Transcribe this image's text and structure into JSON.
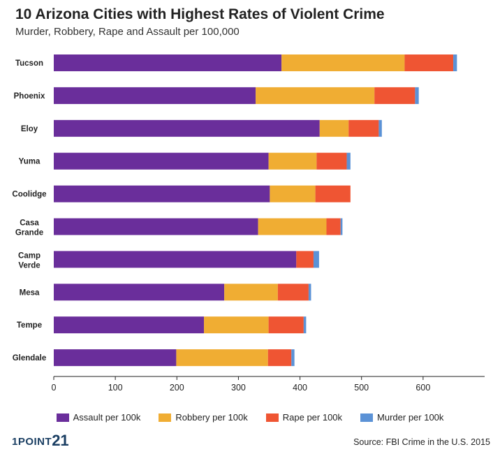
{
  "chart_data": {
    "type": "bar",
    "orientation": "horizontal",
    "stacked": true,
    "title": "10 Arizona Cities with Highest Rates of Violent Crime",
    "subtitle": "Murder, Robbery, Rape and Assault per 100,000",
    "categories": [
      {
        "line1": "Tucson",
        "line2": ""
      },
      {
        "line1": "Phoenix",
        "line2": ""
      },
      {
        "line1": "Eloy",
        "line2": ""
      },
      {
        "line1": "Yuma",
        "line2": ""
      },
      {
        "line1": "Coolidge",
        "line2": ""
      },
      {
        "line1": "Casa",
        "line2": "Grande"
      },
      {
        "line1": "Camp",
        "line2": "Verde"
      },
      {
        "line1": "Mesa",
        "line2": ""
      },
      {
        "line1": "Tempe",
        "line2": ""
      },
      {
        "line1": "Glendale",
        "line2": ""
      }
    ],
    "series": [
      {
        "name": "Assault per 100k",
        "color": "#6a2e9b",
        "values": [
          370,
          328,
          432,
          349,
          351,
          332,
          394,
          277,
          244,
          199
        ]
      },
      {
        "name": "Robbery per 100k",
        "color": "#f0ad33",
        "values": [
          200,
          193,
          47,
          78,
          74,
          111,
          0,
          87,
          105,
          149
        ]
      },
      {
        "name": "Rape per 100k",
        "color": "#ef5533",
        "values": [
          79,
          66,
          49,
          49,
          57,
          23,
          28,
          50,
          57,
          38
        ]
      },
      {
        "name": "Murder per 100k",
        "color": "#5b92d6",
        "values": [
          6,
          6,
          5,
          6,
          0,
          3,
          9,
          4,
          4,
          5
        ]
      }
    ],
    "xlim": [
      0,
      700
    ],
    "xticks": [
      0,
      100,
      200,
      300,
      400,
      500,
      600
    ],
    "xlabel": "",
    "ylabel": "",
    "grid": false,
    "legend": "bottom"
  },
  "footer": {
    "logo_text": "1POINT",
    "logo_number": "21",
    "source": "Source: FBI Crime in the U.S. 2015"
  }
}
